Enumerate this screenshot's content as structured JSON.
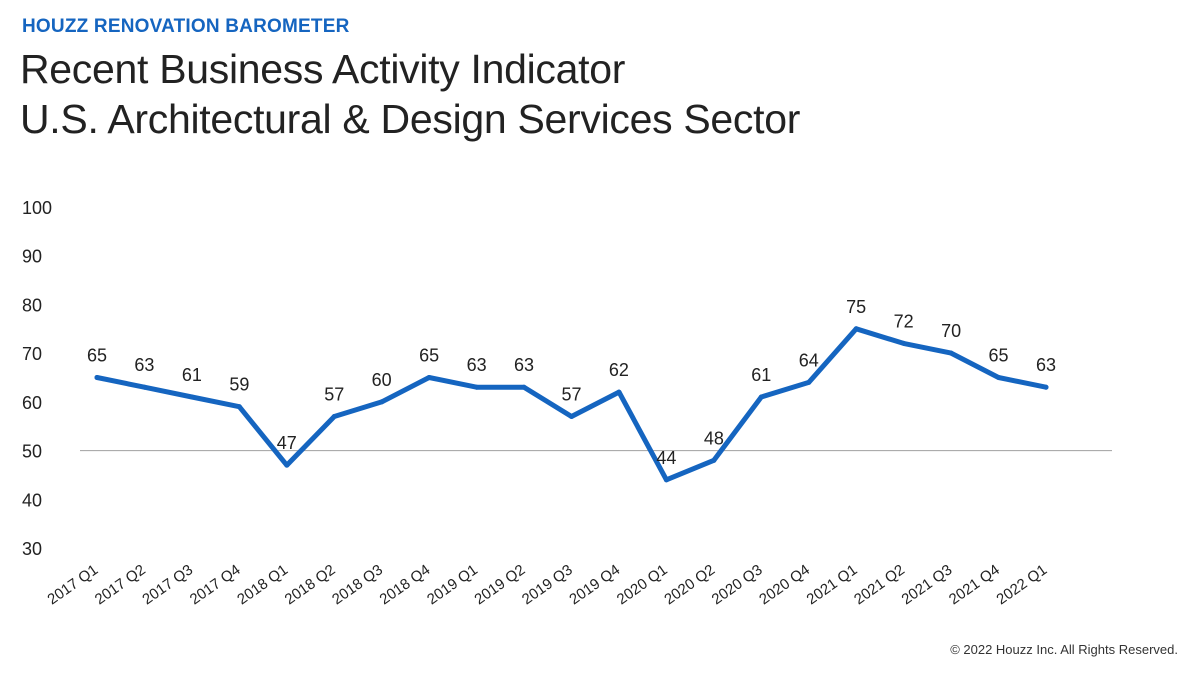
{
  "header": {
    "kicker": "HOUZZ RENOVATION BAROMETER",
    "title_line1": "Recent Business Activity Indicator",
    "title_line2": "U.S. Architectural & Design Services Sector"
  },
  "footer": {
    "copyright": "© 2022 Houzz Inc. All Rights Reserved."
  },
  "colors": {
    "accent": "#1565c0",
    "line": "#1565c0",
    "reference_line": "#a0a0a0"
  },
  "chart_data": {
    "type": "line",
    "title": "Recent Business Activity Indicator",
    "xlabel": "",
    "ylabel": "",
    "ylim": [
      30,
      100
    ],
    "yticks": [
      30,
      40,
      50,
      60,
      70,
      80,
      90,
      100
    ],
    "reference_line": 50,
    "grid": false,
    "categories": [
      "2017 Q1",
      "2017 Q2",
      "2017 Q3",
      "2017 Q4",
      "2018 Q1",
      "2018 Q2",
      "2018 Q3",
      "2018 Q4",
      "2019 Q1",
      "2019 Q2",
      "2019 Q3",
      "2019 Q4",
      "2020 Q1",
      "2020 Q2",
      "2020 Q3",
      "2020 Q4",
      "2021 Q1",
      "2021 Q2",
      "2021 Q3",
      "2021 Q4",
      "2022 Q1"
    ],
    "values": [
      65,
      63,
      61,
      59,
      47,
      57,
      60,
      65,
      63,
      63,
      57,
      62,
      44,
      48,
      61,
      64,
      75,
      72,
      70,
      65,
      63
    ],
    "data_labels": [
      "65",
      "63",
      "61",
      "59",
      "47",
      "57",
      "60",
      "65",
      "63",
      "63",
      "57",
      "62",
      "44",
      "48",
      "61",
      "64",
      "75",
      "72",
      "70",
      "65",
      "63"
    ]
  }
}
